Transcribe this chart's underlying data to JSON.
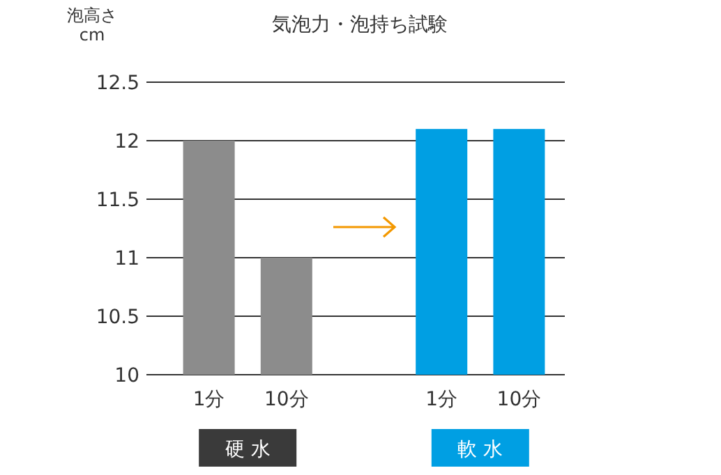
{
  "chart_data": {
    "type": "bar",
    "title": "気泡力・泡持ち試験",
    "ylabel": "泡高さ\ncm",
    "categories": [
      "1分",
      "10分",
      null,
      "1分",
      "10分"
    ],
    "values": [
      12,
      11,
      null,
      12.1,
      12.1
    ],
    "colors": [
      "#8c8c8c",
      "#8c8c8c",
      null,
      "#009fe3",
      "#009fe3"
    ],
    "ylim": [
      10,
      12.5
    ],
    "yticks": [
      10,
      10.5,
      11,
      11.5,
      12,
      12.5
    ],
    "grid": "y",
    "annotations": [
      "硬 水",
      "軟 水"
    ]
  }
}
